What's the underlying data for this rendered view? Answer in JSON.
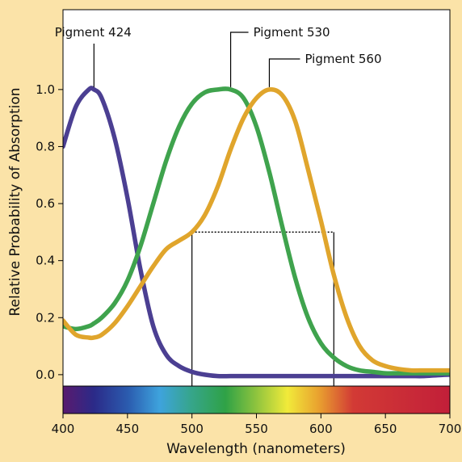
{
  "chart_data": {
    "type": "line",
    "title": "",
    "xlabel": "Wavelength (nanometers)",
    "ylabel": "Relative Probability of Absorption",
    "xlim": [
      400,
      700
    ],
    "ylim": [
      -0.04,
      1.28
    ],
    "x_ticks": [
      "400",
      "450",
      "500",
      "550",
      "600",
      "650",
      "700"
    ],
    "y_ticks": [
      "0.0",
      "0.2",
      "0.4",
      "0.6",
      "0.8",
      "1.0"
    ],
    "x": [
      400,
      410,
      420,
      424,
      430,
      440,
      450,
      460,
      470,
      480,
      490,
      500,
      510,
      520,
      530,
      540,
      550,
      560,
      570,
      580,
      590,
      600,
      610,
      620,
      630,
      640,
      650,
      660,
      670,
      680,
      690,
      700
    ],
    "series": [
      {
        "name": "Pigment 424",
        "color": "#4b3f92",
        "values": [
          0.8,
          0.94,
          1.0,
          1.0,
          0.97,
          0.83,
          0.62,
          0.37,
          0.17,
          0.07,
          0.03,
          0.01,
          0.0,
          -0.005,
          -0.005,
          -0.005,
          -0.005,
          -0.005,
          -0.005,
          -0.005,
          -0.005,
          -0.005,
          -0.005,
          -0.005,
          -0.005,
          -0.005,
          -0.005,
          -0.005,
          -0.005,
          -0.005,
          -0.002,
          0.0
        ]
      },
      {
        "name": "Pigment 530",
        "color": "#3fa34d",
        "values": [
          0.17,
          0.16,
          0.17,
          0.18,
          0.2,
          0.25,
          0.33,
          0.45,
          0.6,
          0.75,
          0.87,
          0.95,
          0.99,
          1.0,
          1.0,
          0.97,
          0.87,
          0.71,
          0.52,
          0.34,
          0.2,
          0.11,
          0.06,
          0.03,
          0.015,
          0.01,
          0.005,
          0.005,
          0.005,
          0.005,
          0.005,
          0.005
        ]
      },
      {
        "name": "Pigment 560",
        "color": "#e0a52c",
        "values": [
          0.19,
          0.14,
          0.13,
          0.13,
          0.14,
          0.18,
          0.24,
          0.31,
          0.38,
          0.44,
          0.47,
          0.5,
          0.56,
          0.66,
          0.79,
          0.9,
          0.97,
          1.0,
          0.98,
          0.89,
          0.72,
          0.54,
          0.35,
          0.2,
          0.1,
          0.05,
          0.03,
          0.02,
          0.015,
          0.015,
          0.015,
          0.015
        ]
      }
    ],
    "annotations": {
      "pigment_424": {
        "text": "Pigment 424",
        "x": 424,
        "y": 1.0
      },
      "pigment_530": {
        "text": "Pigment 530",
        "x": 530,
        "y": 1.0
      },
      "pigment_560": {
        "text": "Pigment 560",
        "x": 560,
        "y": 1.0
      },
      "half_max_level": 0.5,
      "half_max_x_range": [
        500,
        610
      ]
    },
    "spectrum_bar": true,
    "grid": false
  }
}
